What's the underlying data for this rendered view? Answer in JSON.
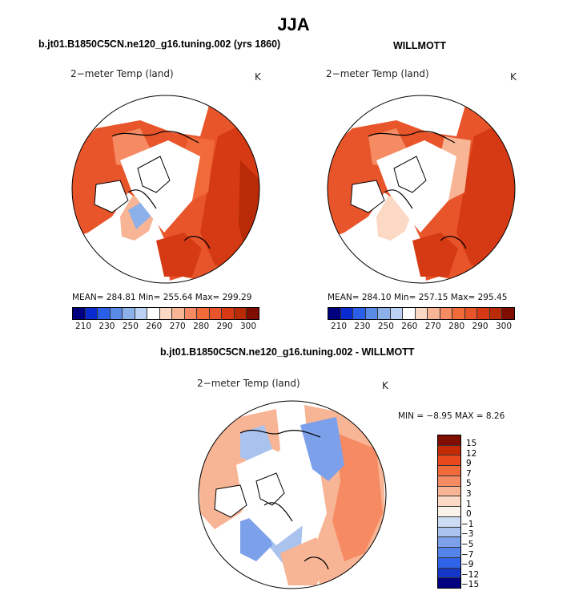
{
  "figure": {
    "title": "JJA"
  },
  "panels": [
    {
      "heading": "b.jt01.B1850C5CN.ne120_g16.tuning.002 (yrs 1860)",
      "variable": "2−meter Temp (land)",
      "units": "K",
      "stats": "MEAN= 284.81   Min= 255.64   Max= 299.29",
      "colorbar_ticks": [
        "210",
        "230",
        "250",
        "260",
        "270",
        "280",
        "290",
        "300"
      ]
    },
    {
      "heading": "WILLMOTT",
      "variable": "2−meter Temp (land)",
      "units": "K",
      "stats": "MEAN= 284.10   Min= 257.15   Max= 295.45",
      "colorbar_ticks": [
        "210",
        "230",
        "250",
        "260",
        "270",
        "280",
        "290",
        "300"
      ]
    }
  ],
  "diff": {
    "heading": "b.jt01.B1850C5CN.ne120_g16.tuning.002 - WILLMOTT",
    "variable": "2−meter Temp (land)",
    "units": "K",
    "stats": "MIN =   −8.95 MAX =    8.26",
    "levels": [
      "15",
      "12",
      "9",
      "7",
      "5",
      "3",
      "1",
      "0",
      "−1",
      "−3",
      "−5",
      "−7",
      "−9",
      "−12",
      "−15"
    ]
  },
  "colors": {
    "abs_scale": [
      "#00007f",
      "#0a2bd0",
      "#2a5fe8",
      "#5a8ae8",
      "#8cb0ea",
      "#bcd2f4",
      "#ffffff",
      "#fbd9c5",
      "#f8b595",
      "#f58a63",
      "#f06a3a",
      "#e8552a",
      "#d63a14",
      "#b92a06",
      "#7f0d00"
    ],
    "diff_scale": [
      "#7f0d00",
      "#c52a06",
      "#e8481b",
      "#f06a3a",
      "#f58a63",
      "#f8b595",
      "#fbd9c5",
      "#fbf2ea",
      "#cddcf5",
      "#a9c2ee",
      "#7ca0ea",
      "#5483ea",
      "#2f63e8",
      "#1537c8",
      "#000080"
    ]
  }
}
